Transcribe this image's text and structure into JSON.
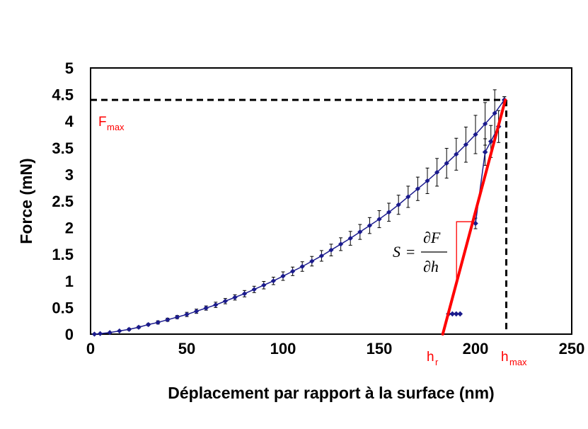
{
  "chart_data": {
    "type": "scatter",
    "xlabel": "Déplacement par rapport à la surface (nm)",
    "ylabel": "Force (mN)",
    "xlim": [
      0,
      250
    ],
    "ylim": [
      0,
      5
    ],
    "x_ticks": [
      "0",
      "50",
      "100",
      "150",
      "200",
      "250"
    ],
    "y_ticks": [
      "0",
      "0.5",
      "1",
      "1.5",
      "2",
      "2.5",
      "3",
      "3.5",
      "4",
      "4.5",
      "5"
    ],
    "grid": false,
    "colors": {
      "series": "#1a1a8c",
      "annotation": "#ff0000",
      "guide": "#000000"
    },
    "loading_curve": {
      "x": [
        2,
        5,
        10,
        15,
        20,
        25,
        30,
        35,
        40,
        45,
        50,
        55,
        60,
        65,
        70,
        75,
        80,
        85,
        90,
        95,
        100,
        105,
        110,
        115,
        120,
        125,
        130,
        135,
        140,
        145,
        150,
        155,
        160,
        165,
        170,
        175,
        180,
        185,
        190,
        195,
        200,
        205,
        210,
        215
      ],
      "y": [
        0.0,
        0.01,
        0.03,
        0.06,
        0.09,
        0.13,
        0.18,
        0.22,
        0.27,
        0.32,
        0.37,
        0.43,
        0.49,
        0.55,
        0.62,
        0.69,
        0.76,
        0.84,
        0.92,
        1.0,
        1.09,
        1.18,
        1.27,
        1.37,
        1.47,
        1.58,
        1.69,
        1.8,
        1.92,
        2.04,
        2.16,
        2.29,
        2.43,
        2.58,
        2.73,
        2.88,
        3.04,
        3.21,
        3.38,
        3.56,
        3.75,
        3.95,
        4.15,
        4.4
      ],
      "error": [
        0.01,
        0.01,
        0.01,
        0.01,
        0.02,
        0.02,
        0.02,
        0.03,
        0.03,
        0.03,
        0.04,
        0.04,
        0.04,
        0.05,
        0.05,
        0.05,
        0.06,
        0.06,
        0.07,
        0.07,
        0.08,
        0.08,
        0.09,
        0.09,
        0.1,
        0.11,
        0.12,
        0.13,
        0.14,
        0.15,
        0.16,
        0.17,
        0.18,
        0.2,
        0.22,
        0.24,
        0.26,
        0.28,
        0.3,
        0.33,
        0.36,
        0.4,
        0.44,
        0.06
      ]
    },
    "unloading_curve": {
      "x": [
        215,
        212,
        208,
        205,
        200
      ],
      "y": [
        4.4,
        3.9,
        3.62,
        3.42,
        2.08
      ],
      "error": [
        0.06,
        0.3,
        0.3,
        0.25,
        0.1
      ]
    },
    "bottom_points": {
      "x": [
        186,
        188,
        190,
        192
      ],
      "y": [
        0.38,
        0.38,
        0.38,
        0.38
      ]
    },
    "tangent_line": {
      "x": [
        183,
        215.5
      ],
      "y": [
        0,
        4.4
      ]
    },
    "fmax_line_y": 4.4,
    "hmax_line_x": 216,
    "labels": {
      "fmax_main": "F",
      "fmax_sub": "max",
      "hr_main": "h",
      "hr_sub": "r",
      "hmax_main": "h",
      "hmax_sub": "max"
    },
    "formula": {
      "lhs": "S",
      "equals": "=",
      "numerator": "∂F",
      "denominator": "∂h"
    }
  }
}
